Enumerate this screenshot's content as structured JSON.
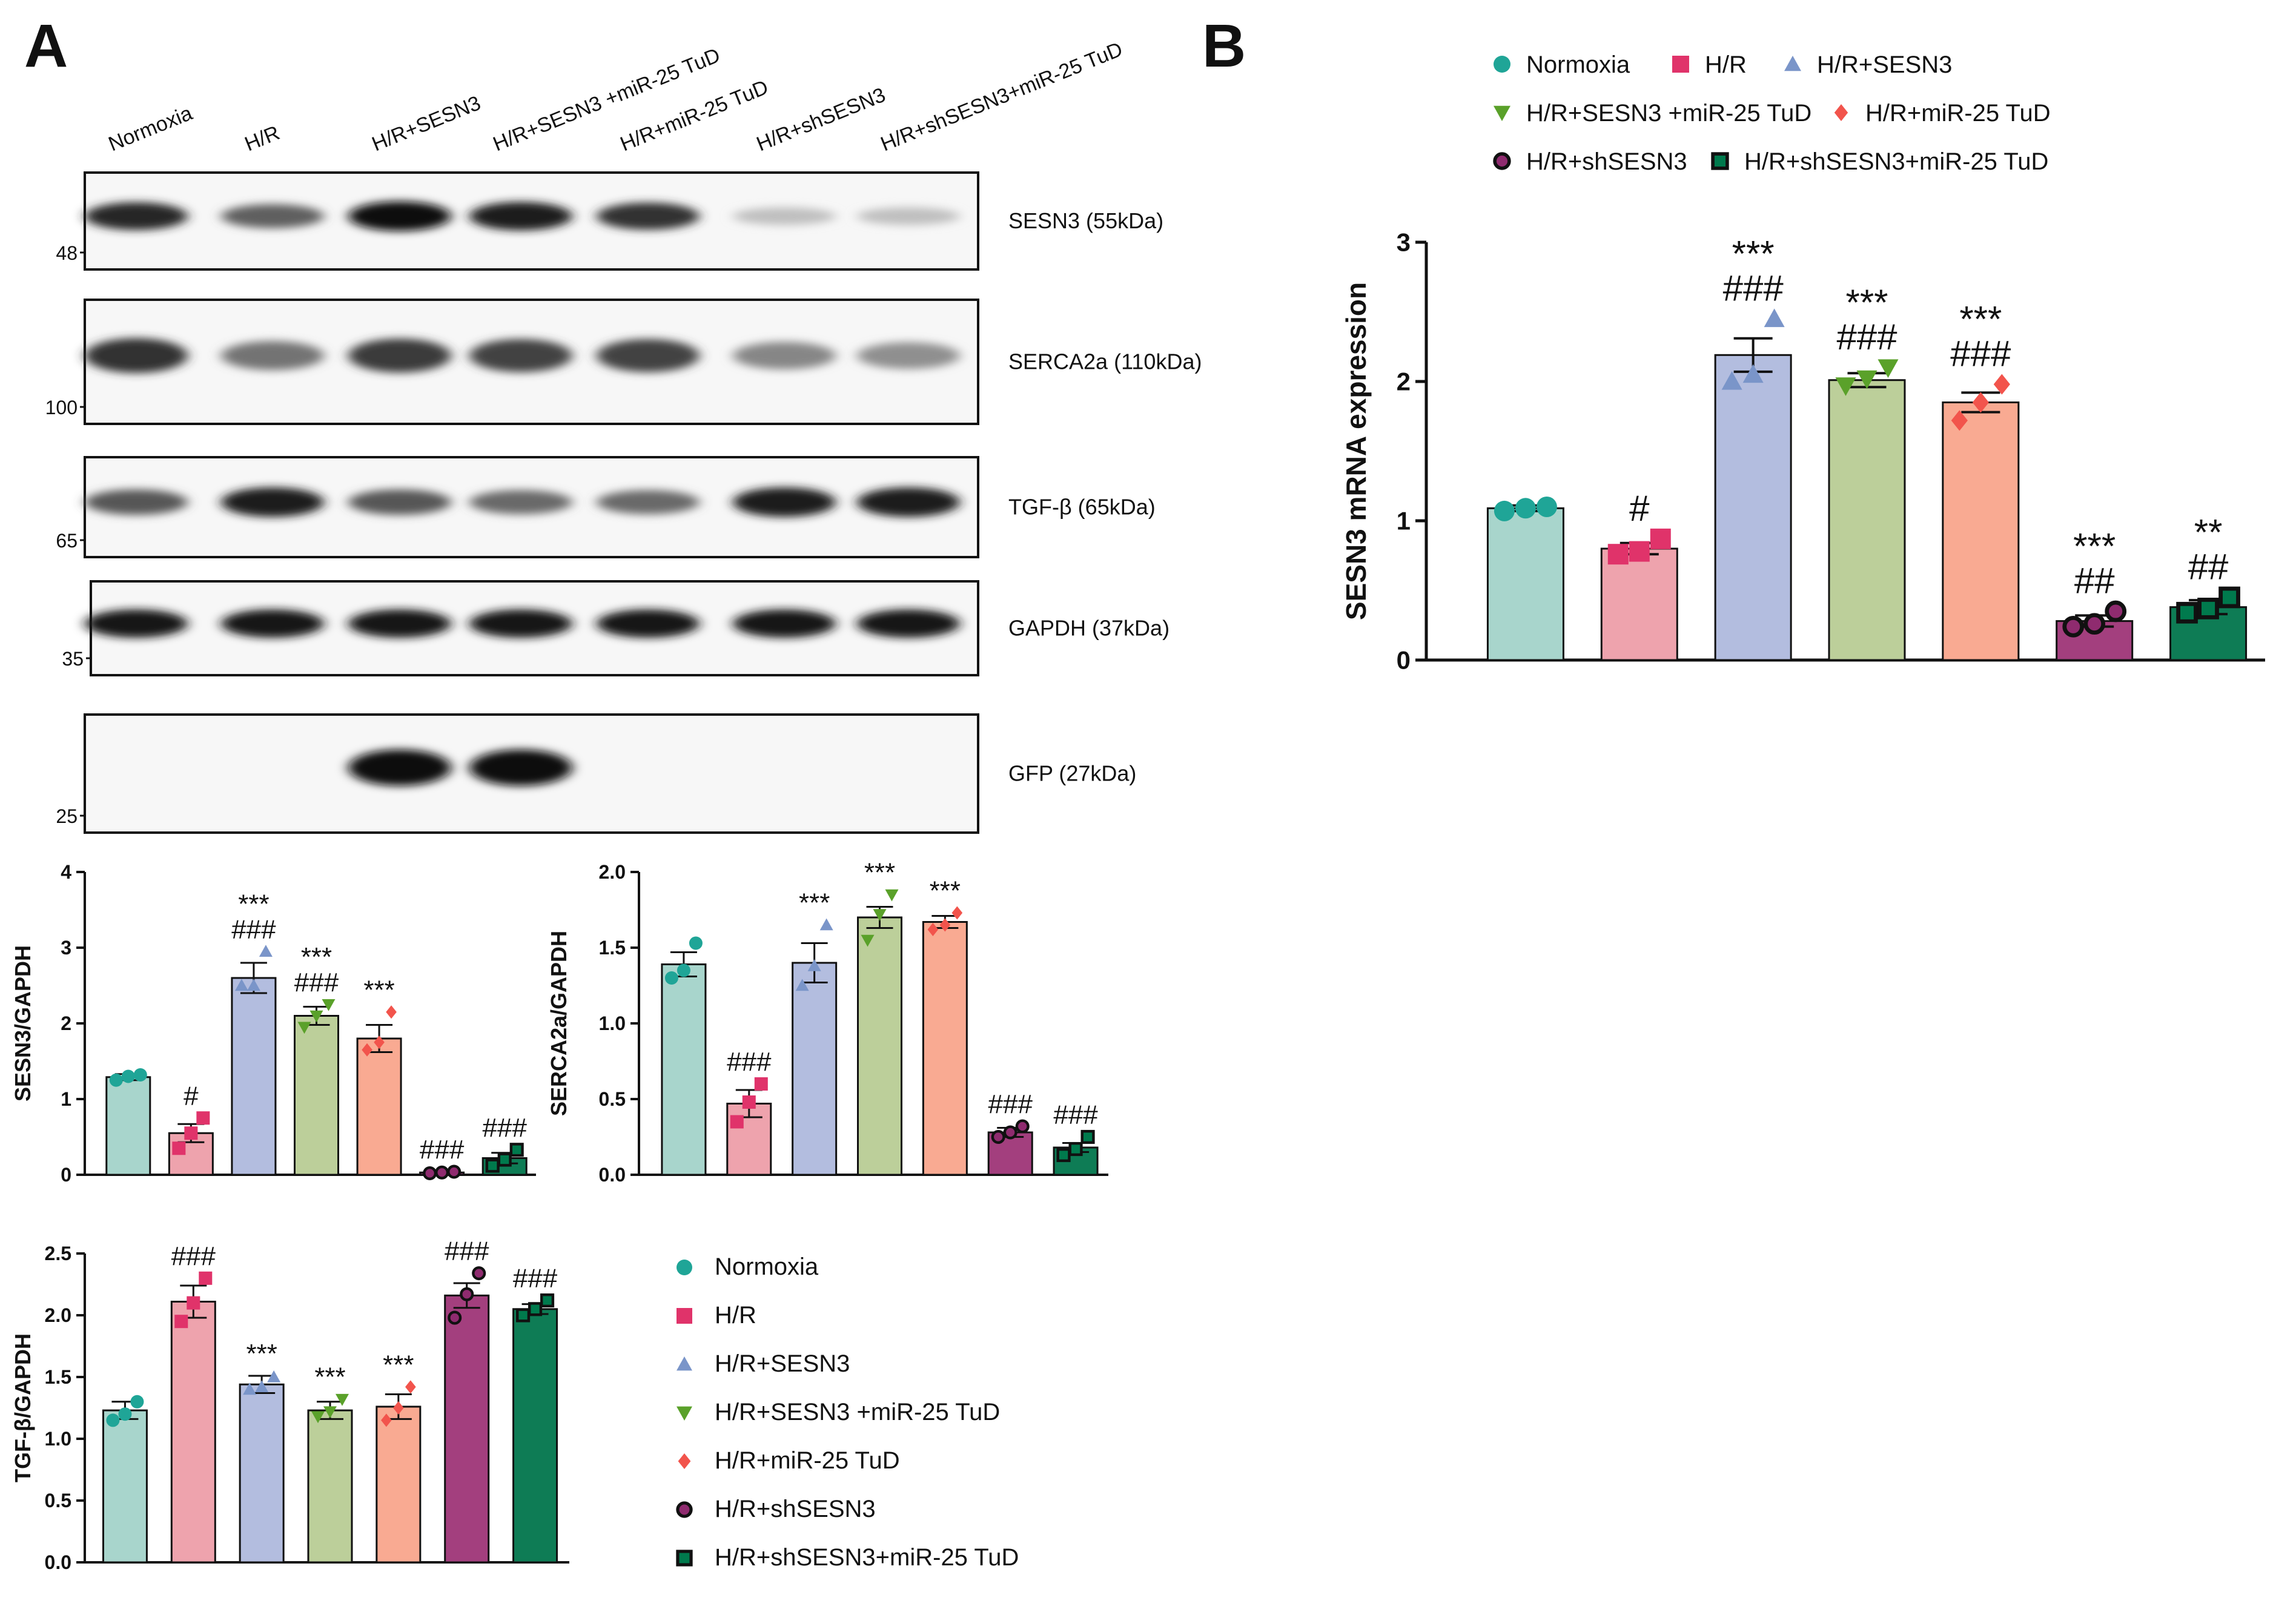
{
  "panel_a_label": "A",
  "panel_b_label": "B",
  "groups": [
    "Normoxia",
    "H/R",
    "H/R+SESN3",
    "H/R+SESN3 +miR-25 TuD",
    "H/R+miR-25 TuD",
    "H/R+shSESN3",
    "H/R+shSESN3+miR-25 TuD"
  ],
  "lane_labels": [
    "Normoxia",
    "H/R",
    "H/R+SESN3",
    "H/R+SESN3 +miR-25 TuD",
    "H/R+miR-25 TuD",
    "H/R+shSESN3",
    "H/R+shSESN3+miR-25 TuD"
  ],
  "colors": {
    "fills": [
      "#a8d5cc",
      "#eea3ad",
      "#b3bddf",
      "#bccf9a",
      "#f9aa92",
      "#a33f7e",
      "#0e7c55"
    ],
    "markers": [
      "#1fa597",
      "#e0336a",
      "#7a95c9",
      "#5aa12a",
      "#f2544c",
      "#8f2b6f",
      "#007a4d"
    ],
    "marker_shapes": [
      "circle",
      "square",
      "triangle-up",
      "triangle-down",
      "diamond",
      "circle-outlined",
      "square-outlined"
    ]
  },
  "blots": [
    {
      "label": "SESN3 (55kDa)",
      "mw_marker": "48",
      "intensities": [
        0.85,
        0.55,
        1.0,
        0.9,
        0.8,
        0.05,
        0.05
      ]
    },
    {
      "label": "SERCA2a (110kDa)",
      "mw_marker": "100",
      "intensities": [
        0.8,
        0.45,
        0.75,
        0.7,
        0.7,
        0.35,
        0.3
      ]
    },
    {
      "label": "TGF-β (65kDa)",
      "mw_marker": "65",
      "intensities": [
        0.6,
        0.9,
        0.6,
        0.5,
        0.5,
        0.9,
        0.9
      ]
    },
    {
      "label": "GAPDH (37kDa)",
      "mw_marker": "35",
      "intensities": [
        0.95,
        0.95,
        0.95,
        0.95,
        0.95,
        0.95,
        0.95
      ]
    },
    {
      "label": "GFP (27kDa)",
      "mw_marker": "25",
      "intensities": [
        0.0,
        0.0,
        1.0,
        1.0,
        0.0,
        0.0,
        0.0
      ]
    }
  ],
  "chart_data": [
    {
      "id": "sesn3-gapdh",
      "type": "bar",
      "ylabel": "SESN3/GAPDH",
      "ylim": [
        0,
        4
      ],
      "yticks": [
        "0",
        "1",
        "2",
        "3",
        "4"
      ],
      "categories": [
        "Normoxia",
        "H/R",
        "H/R+SESN3",
        "H/R+SESN3 +miR-25 TuD",
        "H/R+miR-25 TuD",
        "H/R+shSESN3",
        "H/R+shSESN3+miR-25 TuD"
      ],
      "values": [
        1.29,
        0.55,
        2.6,
        2.1,
        1.8,
        0.03,
        0.22
      ],
      "errors": [
        0.04,
        0.12,
        0.2,
        0.12,
        0.18,
        0.01,
        0.07
      ],
      "points": [
        [
          1.25,
          1.3,
          1.32
        ],
        [
          0.35,
          0.55,
          0.75
        ],
        [
          2.5,
          2.5,
          2.95
        ],
        [
          1.95,
          2.1,
          2.25
        ],
        [
          1.65,
          1.75,
          2.15
        ],
        [
          0.02,
          0.03,
          0.04
        ],
        [
          0.12,
          0.2,
          0.33
        ]
      ],
      "annotations": [
        [
          ""
        ],
        [
          "#"
        ],
        [
          "***",
          "###"
        ],
        [
          "***",
          "###"
        ],
        [
          "***"
        ],
        [
          "###"
        ],
        [
          "###"
        ]
      ]
    },
    {
      "id": "serca2a-gapdh",
      "type": "bar",
      "ylabel": "SERCA2a/GAPDH",
      "ylim": [
        0,
        2.0
      ],
      "yticks": [
        "0.0",
        "0.5",
        "1.0",
        "1.5",
        "2.0"
      ],
      "categories": [
        "Normoxia",
        "H/R",
        "H/R+SESN3",
        "H/R+SESN3 +miR-25 TuD",
        "H/R+miR-25 TuD",
        "H/R+shSESN3",
        "H/R+shSESN3+miR-25 TuD"
      ],
      "values": [
        1.39,
        0.47,
        1.4,
        1.7,
        1.67,
        0.28,
        0.18
      ],
      "errors": [
        0.08,
        0.09,
        0.13,
        0.07,
        0.04,
        0.03,
        0.03
      ],
      "points": [
        [
          1.3,
          1.35,
          1.53
        ],
        [
          0.35,
          0.48,
          0.6
        ],
        [
          1.25,
          1.38,
          1.65
        ],
        [
          1.55,
          1.72,
          1.85
        ],
        [
          1.62,
          1.65,
          1.73
        ],
        [
          0.25,
          0.28,
          0.32
        ],
        [
          0.13,
          0.17,
          0.25
        ]
      ],
      "annotations": [
        [
          ""
        ],
        [
          "###"
        ],
        [
          "***"
        ],
        [
          "***"
        ],
        [
          "***"
        ],
        [
          "###"
        ],
        [
          "###"
        ]
      ]
    },
    {
      "id": "tgfb-gapdh",
      "type": "bar",
      "ylabel": "TGF-β/GAPDH",
      "ylim": [
        0,
        2.5
      ],
      "yticks": [
        "0.0",
        "0.5",
        "1.0",
        "1.5",
        "2.0",
        "2.5"
      ],
      "categories": [
        "Normoxia",
        "H/R",
        "H/R+SESN3",
        "H/R+SESN3 +miR-25 TuD",
        "H/R+miR-25 TuD",
        "H/R+shSESN3",
        "H/R+shSESN3+miR-25 TuD"
      ],
      "values": [
        1.23,
        2.11,
        1.44,
        1.23,
        1.26,
        2.16,
        2.05
      ],
      "errors": [
        0.07,
        0.13,
        0.07,
        0.07,
        0.1,
        0.1,
        0.04
      ],
      "points": [
        [
          1.15,
          1.2,
          1.3
        ],
        [
          1.95,
          2.1,
          2.3
        ],
        [
          1.4,
          1.42,
          1.5
        ],
        [
          1.18,
          1.22,
          1.32
        ],
        [
          1.15,
          1.25,
          1.42
        ],
        [
          1.98,
          2.17,
          2.34
        ],
        [
          2.0,
          2.05,
          2.12
        ]
      ],
      "annotations": [
        [
          ""
        ],
        [
          "###"
        ],
        [
          "***"
        ],
        [
          "***"
        ],
        [
          "***"
        ],
        [
          "###"
        ],
        [
          "###"
        ]
      ]
    },
    {
      "id": "sesn3-mrna",
      "type": "bar",
      "ylabel": "SESN3 mRNA expression",
      "ylim": [
        0,
        3
      ],
      "yticks": [
        "0",
        "1",
        "2",
        "3"
      ],
      "categories": [
        "Normoxia",
        "H/R",
        "H/R+SESN3",
        "H/R+SESN3 +miR-25 TuD",
        "H/R+miR-25 TuD",
        "H/R+shSESN3",
        "H/R+shSESN3+miR-25 TuD"
      ],
      "values": [
        1.09,
        0.8,
        2.19,
        2.01,
        1.85,
        0.28,
        0.38
      ],
      "errors": [
        0.02,
        0.04,
        0.12,
        0.05,
        0.07,
        0.04,
        0.05
      ],
      "points": [
        [
          1.07,
          1.09,
          1.1
        ],
        [
          0.76,
          0.78,
          0.87
        ],
        [
          2.0,
          2.05,
          2.45
        ],
        [
          1.97,
          2.02,
          2.1
        ],
        [
          1.72,
          1.85,
          1.98
        ],
        [
          0.24,
          0.26,
          0.35
        ],
        [
          0.34,
          0.37,
          0.45
        ]
      ],
      "annotations": [
        [
          ""
        ],
        [
          "#"
        ],
        [
          "***",
          "###"
        ],
        [
          "***",
          "###"
        ],
        [
          "***",
          "###"
        ],
        [
          "***",
          "##"
        ],
        [
          "**",
          "##"
        ]
      ]
    }
  ],
  "legend_b_rows": [
    [
      0,
      1,
      2
    ],
    [
      3,
      4
    ],
    [
      5,
      6
    ]
  ],
  "legend_a_items": [
    0,
    1,
    2,
    3,
    4,
    5,
    6
  ]
}
